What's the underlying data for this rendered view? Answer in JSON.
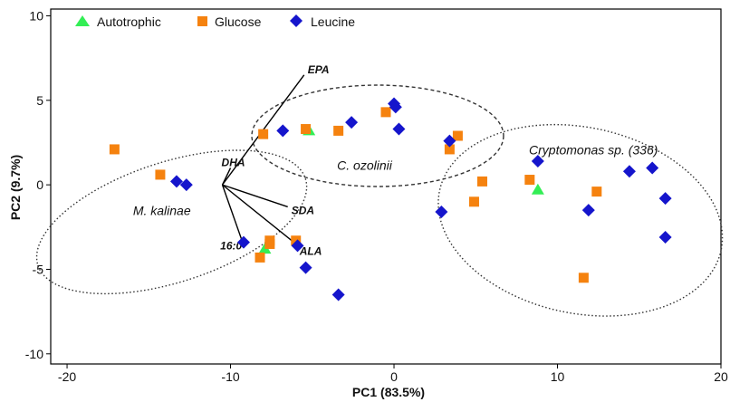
{
  "chart_data": {
    "type": "scatter",
    "xlabel": "PC1 (83.5%)",
    "ylabel": "PC2 (9.7%)",
    "xlim": [
      -21,
      20
    ],
    "ylim": [
      -10.6,
      10.4
    ],
    "xticks": [
      -20,
      -10,
      0,
      10,
      20
    ],
    "yticks": [
      -10,
      -5,
      0,
      5,
      10
    ],
    "xtick_labels": [
      "-20",
      "-10",
      "0",
      "10",
      "20"
    ],
    "ytick_labels": [
      "-10",
      "-5",
      "0",
      "5",
      "10"
    ],
    "grid": false,
    "legend_position": "top-left",
    "series": [
      {
        "name": "Autotrophic",
        "marker": "triangle",
        "color": "#33ee55",
        "points": [
          [
            -5.2,
            3.2
          ],
          [
            -7.9,
            -3.8
          ],
          [
            8.8,
            -0.3
          ]
        ]
      },
      {
        "name": "Glucose",
        "marker": "square",
        "color": "#f5820f",
        "points": [
          [
            -17.1,
            2.1
          ],
          [
            -14.3,
            0.6
          ],
          [
            -8.0,
            3.0
          ],
          [
            -5.4,
            3.3
          ],
          [
            -3.4,
            3.2
          ],
          [
            -0.5,
            4.3
          ],
          [
            3.4,
            2.1
          ],
          [
            3.9,
            2.9
          ],
          [
            -8.2,
            -4.3
          ],
          [
            -7.6,
            -3.5
          ],
          [
            -7.6,
            -3.3
          ],
          [
            -6.0,
            -3.3
          ],
          [
            5.4,
            0.2
          ],
          [
            4.9,
            -1.0
          ],
          [
            8.3,
            0.3
          ],
          [
            12.4,
            -0.4
          ],
          [
            11.6,
            -5.5
          ]
        ]
      },
      {
        "name": "Leucine",
        "marker": "diamond",
        "color": "#1515cc",
        "points": [
          [
            -13.3,
            0.2
          ],
          [
            -12.7,
            0.0
          ],
          [
            -6.8,
            3.2
          ],
          [
            -2.6,
            3.7
          ],
          [
            0.0,
            4.8
          ],
          [
            0.1,
            4.6
          ],
          [
            0.3,
            3.3
          ],
          [
            3.4,
            2.6
          ],
          [
            -9.2,
            -3.4
          ],
          [
            -5.9,
            -3.6
          ],
          [
            -5.4,
            -4.9
          ],
          [
            -3.4,
            -6.5
          ],
          [
            2.9,
            -1.6
          ],
          [
            8.8,
            1.4
          ],
          [
            11.9,
            -1.5
          ],
          [
            14.4,
            0.8
          ],
          [
            15.8,
            1.0
          ],
          [
            16.6,
            -0.8
          ],
          [
            16.6,
            -3.1
          ]
        ]
      }
    ],
    "vectors": {
      "origin": [
        -10.5,
        0.0
      ],
      "items": [
        {
          "label": "EPA",
          "end": [
            -5.5,
            6.5
          ]
        },
        {
          "label": "DHA",
          "end": [
            -10.0,
            1.0
          ]
        },
        {
          "label": "SDA",
          "end": [
            -6.5,
            -1.3
          ]
        },
        {
          "label": "ALA",
          "end": [
            -6.0,
            -3.5
          ]
        },
        {
          "label": "16:0",
          "end": [
            -9.3,
            -3.3
          ]
        }
      ]
    },
    "groups": [
      {
        "label": "M. kalinae",
        "style": "dotted",
        "center": [
          -13.6,
          -2.2
        ],
        "rx": 8.6,
        "ry": 3.55,
        "angle_deg": -18
      },
      {
        "label": "C. ozolinii",
        "style": "dashed",
        "center": [
          -1.0,
          2.9
        ],
        "rx": 7.7,
        "ry": 3.0,
        "angle_deg": 0
      },
      {
        "label": "Cryptomonas sp. (336)",
        "style": "dotted",
        "center": [
          11.4,
          -2.1
        ],
        "rx": 8.8,
        "ry": 5.5,
        "angle_deg": 12
      }
    ]
  }
}
